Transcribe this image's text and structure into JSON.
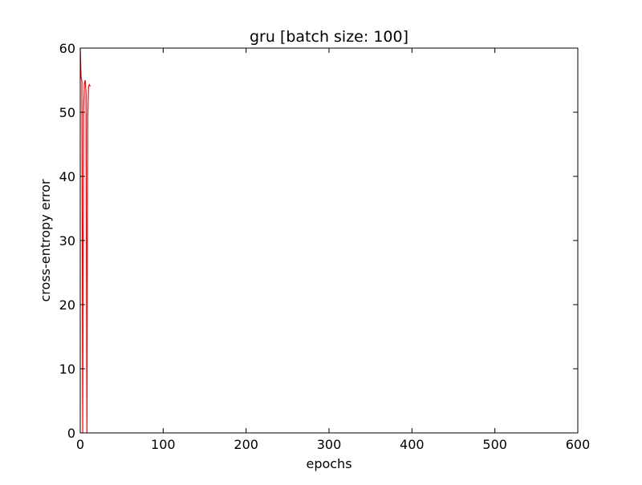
{
  "chart_data": {
    "type": "line",
    "title": "gru [batch size: 100]",
    "xlabel": "epochs",
    "ylabel": "cross-entropy error",
    "xlim": [
      0,
      600
    ],
    "ylim": [
      0,
      60
    ],
    "xticks": [
      0,
      100,
      200,
      300,
      400,
      500,
      600
    ],
    "yticks": [
      0,
      10,
      20,
      30,
      40,
      50,
      60
    ],
    "xtick_labels": [
      "0",
      "100",
      "200",
      "300",
      "400",
      "500",
      "600"
    ],
    "ytick_labels": [
      "0",
      "10",
      "20",
      "30",
      "40",
      "50",
      "60"
    ],
    "grid": false,
    "legend": "none",
    "series": [
      {
        "color": "#ff0000",
        "x": [
          0,
          1,
          2,
          3,
          4,
          5,
          6,
          7,
          8,
          9,
          10,
          11,
          12
        ],
        "y": [
          60,
          55.5,
          54.8,
          0,
          50,
          54.5,
          55,
          53,
          0,
          49,
          54,
          54.3,
          54
        ]
      }
    ]
  }
}
